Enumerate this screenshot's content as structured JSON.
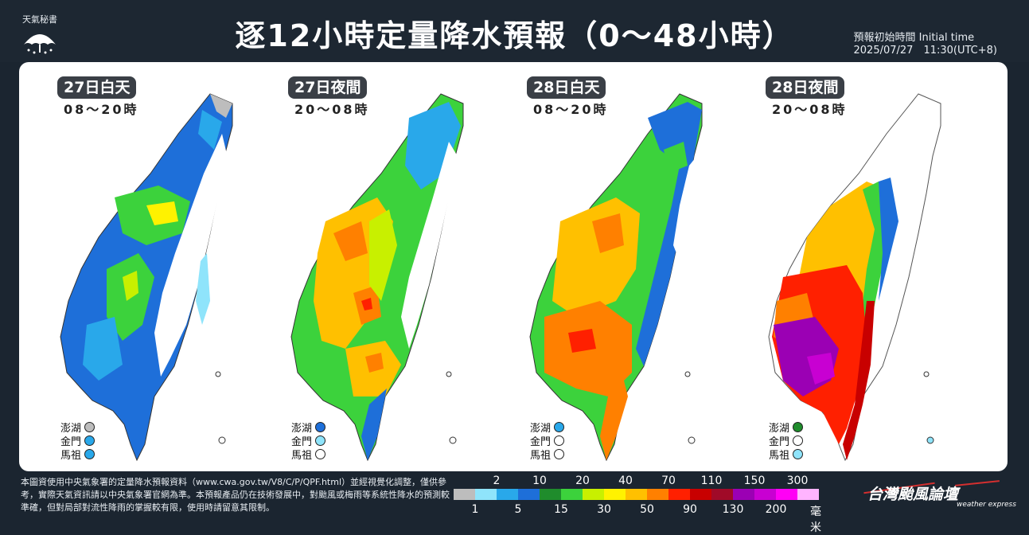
{
  "header": {
    "logo_text": "天氣秘書",
    "title": "逐12小時定量降水預報（0～48小時）",
    "init_label": "預報初始時間 Initial time",
    "init_time": "2025/07/27　11:30(UTC+8)"
  },
  "panels": [
    {
      "date_label": "27日白天",
      "time_range": "08～20時",
      "islands": [
        {
          "name": "澎湖",
          "color": "#bdbdbd"
        },
        {
          "name": "金門",
          "color": "#29a8ea"
        },
        {
          "name": "馬祖",
          "color": "#29a8ea"
        }
      ]
    },
    {
      "date_label": "27日夜間",
      "time_range": "20～08時",
      "islands": [
        {
          "name": "澎湖",
          "color": "#1e6fd9"
        },
        {
          "name": "金門",
          "color": "#8fe4fb"
        },
        {
          "name": "馬祖",
          "color": "#ffffff"
        }
      ]
    },
    {
      "date_label": "28日白天",
      "time_range": "08～20時",
      "islands": [
        {
          "name": "澎湖",
          "color": "#29a8ea"
        },
        {
          "name": "金門",
          "color": "#ffffff"
        },
        {
          "name": "馬祖",
          "color": "#ffffff"
        }
      ]
    },
    {
      "date_label": "28日夜間",
      "time_range": "20～08時",
      "islands": [
        {
          "name": "澎湖",
          "color": "#1f8c2c"
        },
        {
          "name": "金門",
          "color": "#ffffff"
        },
        {
          "name": "馬祖",
          "color": "#8fe4fb"
        }
      ]
    }
  ],
  "footer": {
    "note": "本圖資使用中央氣象署的定量降水預報資料（www.cwa.gov.tw/V8/C/P/QPF.html）並經視覺化調整，僅供參考，實際天氣資訊請以中央氣象署官網為準。本預報產品仍在技術發展中，對颱風或梅雨等系統性降水的預測較準確，但對局部對流性降雨的掌握較有限，使用時請留意其限制。",
    "legend_top": [
      "2",
      "10",
      "20",
      "40",
      "70",
      "110",
      "150",
      "300"
    ],
    "legend_bottom": [
      "1",
      "5",
      "15",
      "30",
      "50",
      "90",
      "130",
      "200",
      "毫米"
    ],
    "legend_colors": [
      "#bdbdbd",
      "#8fe4fb",
      "#29a8ea",
      "#1e6fd9",
      "#1f8c2c",
      "#3cd23c",
      "#c8f000",
      "#fff200",
      "#ffc000",
      "#ff8000",
      "#ff2000",
      "#c80000",
      "#a00a28",
      "#9b00b4",
      "#c800d2",
      "#ff00f5",
      "#ffb4ff"
    ],
    "brand": "台灣颱風論壇",
    "brand_sub": "weather express"
  }
}
